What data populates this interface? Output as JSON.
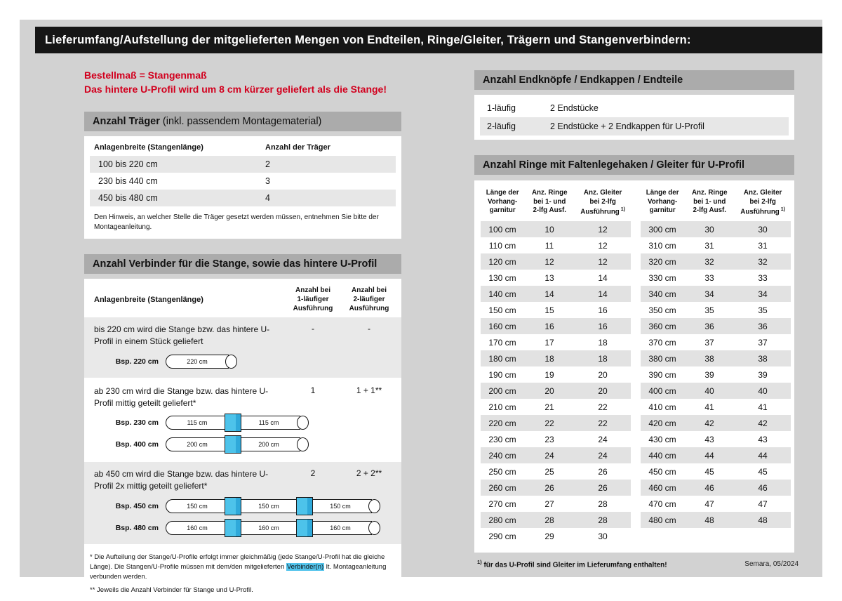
{
  "title": "Lieferumfang/Aufstellung der mitgelieferten Mengen von Endteilen, Ringe/Gleiter, Trägern und Stangenverbindern:",
  "colors": {
    "page_bg": "#d2d2d2",
    "title_bar": "#161616",
    "accent_red": "#d2001e",
    "section_header_gray": "#ababab",
    "stripe_gray": "#e7e7e7",
    "connector_cyan": "#4dc3ea"
  },
  "left": {
    "notice1": "Bestellmaß = Stangenmaß",
    "notice2": "Das hintere U-Profil wird um 8 cm kürzer geliefert als die Stange!",
    "traeger": {
      "header_bold": "Anzahl Träger",
      "header_rest": " (inkl. passendem Montagematerial)",
      "col1": "Anlagenbreite (Stangenlänge)",
      "col2": "Anzahl der Träger",
      "rows": [
        [
          "100 bis 220 cm",
          "2"
        ],
        [
          "230 bis 440 cm",
          "3"
        ],
        [
          "450 bis 480 cm",
          "4"
        ]
      ],
      "note": "Den Hinweis, an welcher Stelle die Träger gesetzt werden müssen, entnehmen Sie bitte der Montageanleitung."
    },
    "verbinder": {
      "header": "Anzahl Verbinder für die Stange, sowie das hintere U-Profil",
      "col1": "Anlagenbreite (Stangenlänge)",
      "col2": "Anzahl bei\n1-läufiger\nAusführung",
      "col3": "Anzahl bei\n2-läufiger\nAusführung",
      "sections": [
        {
          "text": "bis 220 cm wird die Stange bzw. das hintere U-Profil in einem Stück geliefert",
          "v1": "-",
          "v2": "-",
          "examples": [
            {
              "label": "Bsp. 220 cm",
              "segments": [
                "220 cm"
              ]
            }
          ]
        },
        {
          "text": "ab 230 cm wird die Stange bzw. das hintere U-Profil mittig geteilt geliefert*",
          "v1": "1",
          "v2": "1 + 1**",
          "examples": [
            {
              "label": "Bsp. 230 cm",
              "segments": [
                "115 cm",
                "115 cm"
              ]
            },
            {
              "label": "Bsp. 400 cm",
              "segments": [
                "200 cm",
                "200 cm"
              ]
            }
          ]
        },
        {
          "text": "ab 450 cm wird die Stange bzw. das hintere U-Profil 2x mittig geteilt geliefert*",
          "v1": "2",
          "v2": "2 + 2**",
          "examples": [
            {
              "label": "Bsp. 450 cm",
              "segments": [
                "150 cm",
                "150 cm",
                "150 cm"
              ]
            },
            {
              "label": "Bsp. 480 cm",
              "segments": [
                "160 cm",
                "160 cm",
                "160 cm"
              ]
            }
          ]
        }
      ],
      "fn1_pre": "* Die Aufteilung der Stange/U-Profile erfolgt immer gleichmäßig (jede Stange/U-Profil hat die gleiche Länge). Die Stangen/U-Profile müssen mit dem/den mitgelieferten ",
      "fn1_hl": "Verbinder(n)",
      "fn1_post": " lt. Montageanleitung verbunden werden.",
      "fn2": "** Jeweils die Anzahl Verbinder für Stange und U-Profil."
    }
  },
  "right": {
    "endteile": {
      "header": "Anzahl Endknöpfe / Endkappen / Endteile",
      "rows": [
        [
          "1-läufig",
          "2 Endstücke"
        ],
        [
          "2-läufig",
          "2 Endstücke + 2 Endkappen für U-Profil"
        ]
      ]
    },
    "ringe": {
      "header": "Anzahl Ringe mit Faltenlegehaken / Gleiter für U-Profil",
      "cols": [
        {
          "lines": "Länge der\nVorhang-\ngarnitur"
        },
        {
          "lines": "Anz. Ringe\nbei 1- und\n2-lfg Ausf."
        },
        {
          "lines": "Anz. Gleiter\nbei 2-lfg\nAusführung",
          "sup": "1)"
        }
      ],
      "tables": [
        {
          "rows": [
            [
              "100 cm",
              "10",
              "12"
            ],
            [
              "110 cm",
              "11",
              "12"
            ],
            [
              "120 cm",
              "12",
              "12"
            ],
            [
              "130 cm",
              "13",
              "14"
            ],
            [
              "140 cm",
              "14",
              "14"
            ],
            [
              "150 cm",
              "15",
              "16"
            ],
            [
              "160 cm",
              "16",
              "16"
            ],
            [
              "170 cm",
              "17",
              "18"
            ],
            [
              "180 cm",
              "18",
              "18"
            ],
            [
              "190 cm",
              "19",
              "20"
            ],
            [
              "200 cm",
              "20",
              "20"
            ],
            [
              "210 cm",
              "21",
              "22"
            ],
            [
              "220 cm",
              "22",
              "22"
            ],
            [
              "230 cm",
              "23",
              "24"
            ],
            [
              "240 cm",
              "24",
              "24"
            ],
            [
              "250 cm",
              "25",
              "26"
            ],
            [
              "260 cm",
              "26",
              "26"
            ],
            [
              "270 cm",
              "27",
              "28"
            ],
            [
              "280 cm",
              "28",
              "28"
            ],
            [
              "290 cm",
              "29",
              "30"
            ]
          ]
        },
        {
          "rows": [
            [
              "300 cm",
              "30",
              "30"
            ],
            [
              "310 cm",
              "31",
              "31"
            ],
            [
              "320 cm",
              "32",
              "32"
            ],
            [
              "330 cm",
              "33",
              "33"
            ],
            [
              "340 cm",
              "34",
              "34"
            ],
            [
              "350 cm",
              "35",
              "35"
            ],
            [
              "360 cm",
              "36",
              "36"
            ],
            [
              "370 cm",
              "37",
              "37"
            ],
            [
              "380 cm",
              "38",
              "38"
            ],
            [
              "390 cm",
              "39",
              "39"
            ],
            [
              "400 cm",
              "40",
              "40"
            ],
            [
              "410 cm",
              "41",
              "41"
            ],
            [
              "420 cm",
              "42",
              "42"
            ],
            [
              "430 cm",
              "43",
              "43"
            ],
            [
              "440 cm",
              "44",
              "44"
            ],
            [
              "450 cm",
              "45",
              "45"
            ],
            [
              "460 cm",
              "46",
              "46"
            ],
            [
              "470 cm",
              "47",
              "47"
            ],
            [
              "480 cm",
              "48",
              "48"
            ]
          ]
        }
      ],
      "footnote_sup": "1)",
      "footnote_text": "für das U-Profil sind Gleiter im Lieferumfang enthalten!"
    }
  },
  "footer": "Semara, 05/2024"
}
